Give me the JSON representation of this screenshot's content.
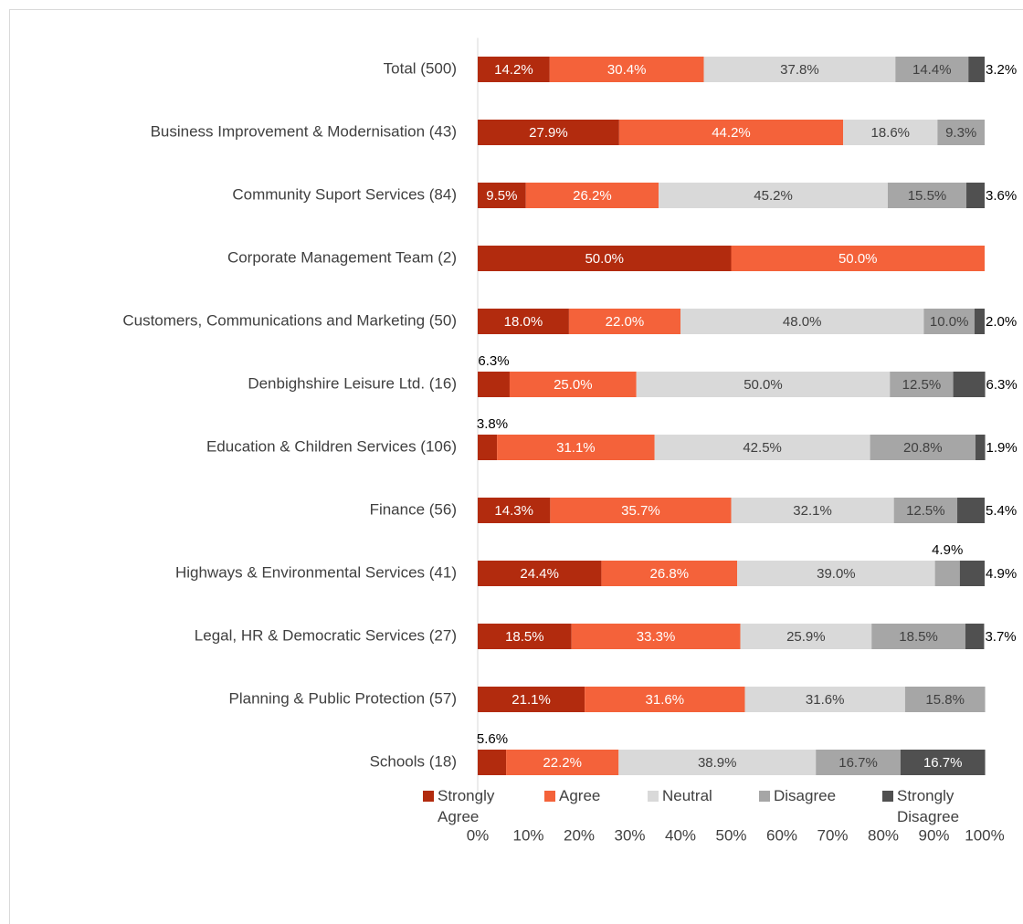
{
  "chart_data": {
    "type": "stacked-bar-horizontal",
    "categories": [
      "Total (500)",
      "Business Improvement & Modernisation (43)",
      "Community Suport Services (84)",
      "Corporate Management Team (2)",
      "Customers, Communications and Marketing (50)",
      "Denbighshire Leisure Ltd. (16)",
      "Education & Children Services (106)",
      "Finance (56)",
      "Highways & Environmental Services (41)",
      "Legal, HR & Democratic Services (27)",
      "Planning & Public Protection (57)",
      "Schools (18)"
    ],
    "series": [
      {
        "name": "Strongly Agree",
        "color": "#b22b0e",
        "values": [
          14.2,
          27.9,
          9.5,
          50.0,
          18.0,
          6.3,
          3.8,
          14.3,
          24.4,
          18.5,
          21.1,
          5.6
        ],
        "value_labels": [
          "14.2%",
          "27.9%",
          "9.5%",
          "50.0%",
          "18.0%",
          "6.3%",
          "3.8%",
          "14.3%",
          "24.4%",
          "18.5%",
          "21.1%",
          "5.6%"
        ]
      },
      {
        "name": "Agree",
        "color": "#f4623a",
        "values": [
          30.4,
          44.2,
          26.2,
          50.0,
          22.0,
          25.0,
          31.1,
          35.7,
          26.8,
          33.3,
          31.6,
          22.2
        ],
        "value_labels": [
          "30.4%",
          "44.2%",
          "26.2%",
          "50.0%",
          "22.0%",
          "25.0%",
          "31.1%",
          "35.7%",
          "26.8%",
          "33.3%",
          "31.6%",
          "22.2%"
        ]
      },
      {
        "name": "Neutral",
        "color": "#d9d9d9",
        "values": [
          37.8,
          18.6,
          45.2,
          null,
          48.0,
          50.0,
          42.5,
          32.1,
          39.0,
          25.9,
          31.6,
          38.9
        ],
        "value_labels": [
          "37.8%",
          "18.6%",
          "45.2%",
          null,
          "48.0%",
          "50.0%",
          "42.5%",
          "32.1%",
          "39.0%",
          "25.9%",
          "31.6%",
          "38.9%"
        ]
      },
      {
        "name": "Disagree",
        "color": "#a6a6a6",
        "values": [
          14.4,
          9.3,
          15.5,
          null,
          10.0,
          12.5,
          20.8,
          12.5,
          4.9,
          18.5,
          15.8,
          16.7
        ],
        "value_labels": [
          "14.4%",
          "9.3%",
          "15.5%",
          null,
          "10.0%",
          "12.5%",
          "20.8%",
          "12.5%",
          "4.9%",
          "18.5%",
          "15.8%",
          "16.7%"
        ]
      },
      {
        "name": "Strongly Disagree",
        "color": "#505050",
        "values": [
          3.2,
          null,
          3.6,
          null,
          2.0,
          6.3,
          1.9,
          5.4,
          4.9,
          3.7,
          null,
          16.7
        ],
        "value_labels": [
          "3.2%",
          null,
          "3.6%",
          null,
          "2.0%",
          "6.3%",
          "1.9%",
          "5.4%",
          "4.9%",
          "3.7%",
          null,
          "16.7%"
        ]
      }
    ],
    "xlim": [
      0,
      100
    ],
    "xticks": [
      {
        "value": 0,
        "label": "0%"
      },
      {
        "value": 10,
        "label": "10%"
      },
      {
        "value": 20,
        "label": "20%"
      },
      {
        "value": 30,
        "label": "30%"
      },
      {
        "value": 40,
        "label": "40%"
      },
      {
        "value": 50,
        "label": "50%"
      },
      {
        "value": 60,
        "label": "60%"
      },
      {
        "value": 70,
        "label": "70%"
      },
      {
        "value": 80,
        "label": "80%"
      },
      {
        "value": 90,
        "label": "90%"
      },
      {
        "value": 100,
        "label": "100%"
      }
    ],
    "legend": "bottom"
  }
}
